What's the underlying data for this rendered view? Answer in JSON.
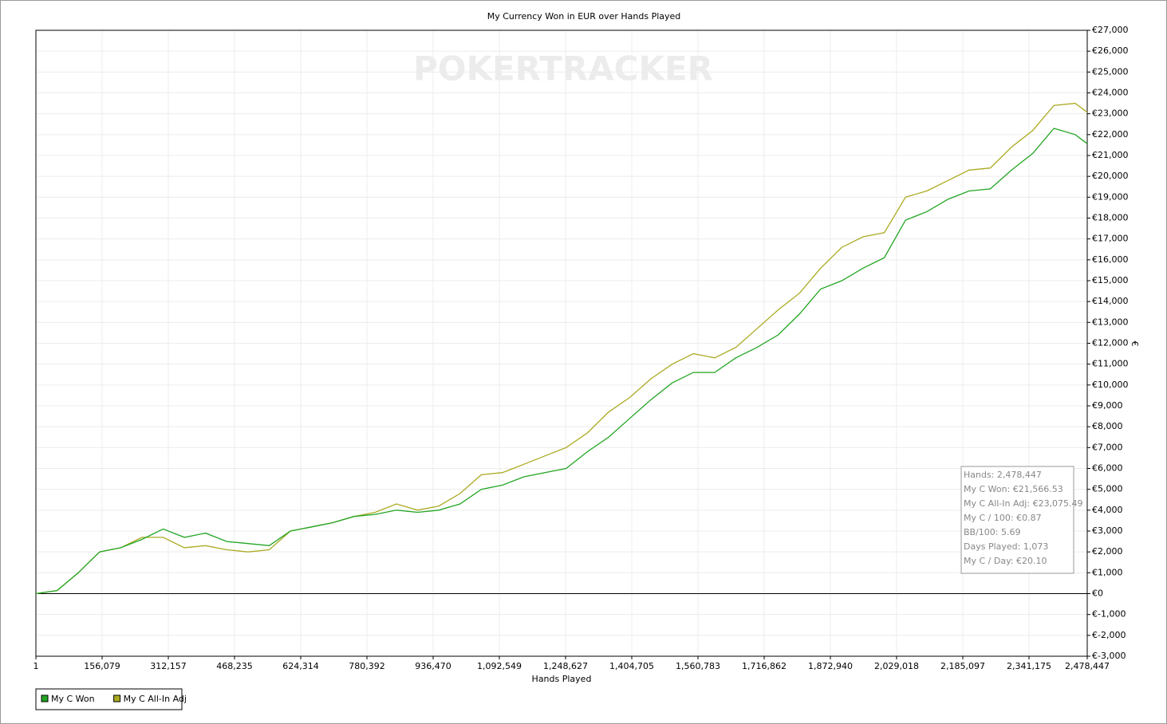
{
  "chart_data": {
    "type": "line",
    "title": "My Currency Won in EUR over Hands Played",
    "watermark": "POKERTRACKER",
    "x_label": "Hands Played",
    "y_label": "€",
    "x": [
      1,
      50000,
      100000,
      150000,
      200000,
      250000,
      300000,
      350000,
      400000,
      450000,
      500000,
      550000,
      600000,
      650000,
      700000,
      750000,
      800000,
      850000,
      900000,
      950000,
      1000000,
      1050000,
      1100000,
      1150000,
      1200000,
      1250000,
      1300000,
      1350000,
      1400000,
      1450000,
      1500000,
      1550000,
      1600000,
      1650000,
      1700000,
      1750000,
      1800000,
      1850000,
      1900000,
      1950000,
      2000000,
      2050000,
      2100000,
      2150000,
      2200000,
      2250000,
      2300000,
      2350000,
      2400000,
      2450000,
      2478447
    ],
    "series": [
      {
        "name": "My C Won",
        "color": "#22a522",
        "values": [
          0,
          150,
          1000,
          2000,
          2200,
          2600,
          3100,
          2700,
          2900,
          2500,
          2400,
          2300,
          3000,
          3200,
          3400,
          3700,
          3800,
          4000,
          3900,
          4000,
          4300,
          5000,
          5200,
          5600,
          5800,
          6000,
          6800,
          7500,
          8400,
          9300,
          10100,
          10600,
          10600,
          11300,
          11800,
          12400,
          13400,
          14600,
          15000,
          15600,
          16100,
          17900,
          18300,
          18900,
          19300,
          19400,
          20300,
          21100,
          22300,
          22000,
          21566.53
        ]
      },
      {
        "name": "My C All-In Adj",
        "color": "#aaaa22",
        "values": [
          0,
          150,
          1000,
          2000,
          2200,
          2700,
          2700,
          2200,
          2300,
          2100,
          2000,
          2100,
          3000,
          3200,
          3400,
          3700,
          3900,
          4300,
          4000,
          4200,
          4800,
          5700,
          5800,
          6200,
          6600,
          7000,
          7700,
          8700,
          9400,
          10300,
          11000,
          11500,
          11300,
          11800,
          12700,
          13600,
          14400,
          15600,
          16600,
          17100,
          17300,
          19000,
          19300,
          19800,
          20300,
          20400,
          21400,
          22200,
          23400,
          23500,
          23075.49
        ]
      }
    ],
    "xlim": [
      1,
      2478447
    ],
    "xticks": [
      1,
      {
        "value": 156079,
        "label": "156,079"
      },
      {
        "value": 312157,
        "label": "312,157"
      },
      {
        "value": 468235,
        "label": "468,235"
      },
      {
        "value": 624314,
        "label": "624,314"
      },
      {
        "value": 780392,
        "label": "780,392"
      },
      {
        "value": 936470,
        "label": "936,470"
      },
      {
        "value": 1092549,
        "label": "1,092,549"
      },
      {
        "value": 1248627,
        "label": "1,248,627"
      },
      {
        "value": 1404705,
        "label": "1,404,705"
      },
      {
        "value": 1560783,
        "label": "1,560,783"
      },
      {
        "value": 1716862,
        "label": "1,716,862"
      },
      {
        "value": 1872940,
        "label": "1,872,940"
      },
      {
        "value": 2029018,
        "label": "2,029,018"
      },
      {
        "value": 2185097,
        "label": "2,185,097"
      },
      {
        "value": 2341175,
        "label": "2,341,175"
      },
      {
        "value": 2478447,
        "label": "2,478,447"
      }
    ],
    "ylim": [
      -3000,
      27000
    ],
    "yticks": [
      {
        "value": -3000,
        "label": "€-3,000"
      },
      {
        "value": -2000,
        "label": "€-2,000"
      },
      {
        "value": -1000,
        "label": "€-1,000"
      },
      {
        "value": 0,
        "label": "€0"
      },
      {
        "value": 1000,
        "label": "€1,000"
      },
      {
        "value": 2000,
        "label": "€2,000"
      },
      {
        "value": 3000,
        "label": "€3,000"
      },
      {
        "value": 4000,
        "label": "€4,000"
      },
      {
        "value": 5000,
        "label": "€5,000"
      },
      {
        "value": 6000,
        "label": "€6,000"
      },
      {
        "value": 7000,
        "label": "€7,000"
      },
      {
        "value": 8000,
        "label": "€8,000"
      },
      {
        "value": 9000,
        "label": "€9,000"
      },
      {
        "value": 10000,
        "label": "€10,000"
      },
      {
        "value": 11000,
        "label": "€11,000"
      },
      {
        "value": 12000,
        "label": "€12,000"
      },
      {
        "value": 13000,
        "label": "€13,000"
      },
      {
        "value": 14000,
        "label": "€14,000"
      },
      {
        "value": 15000,
        "label": "€15,000"
      },
      {
        "value": 16000,
        "label": "€16,000"
      },
      {
        "value": 17000,
        "label": "€17,000"
      },
      {
        "value": 18000,
        "label": "€18,000"
      },
      {
        "value": 19000,
        "label": "€19,000"
      },
      {
        "value": 20000,
        "label": "€20,000"
      },
      {
        "value": 21000,
        "label": "€21,000"
      },
      {
        "value": 22000,
        "label": "€22,000"
      },
      {
        "value": 23000,
        "label": "€23,000"
      },
      {
        "value": 24000,
        "label": "€24,000"
      },
      {
        "value": 25000,
        "label": "€25,000"
      },
      {
        "value": 26000,
        "label": "€26,000"
      },
      {
        "value": 27000,
        "label": "€27,000"
      }
    ],
    "grid": true,
    "stats": [
      "Hands: 2,478,447",
      "My C Won: €21,566.53",
      "My C All-In Adj: €23,075.49",
      "My C / 100: €0.87",
      "BB/100: 5.69",
      "Days Played: 1,073",
      "My C / Day: €20.10"
    ]
  }
}
